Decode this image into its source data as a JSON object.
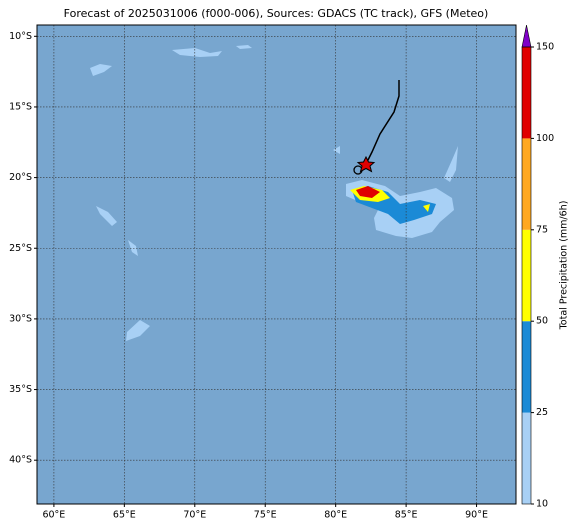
{
  "map": {
    "title": "Forecast of 2025031006 (f000-006), Sources: GDACS (TC track), GFS (Meteo)",
    "xlim": [
      58.8,
      92.8
    ],
    "ylim": [
      -43.1,
      -9.2
    ],
    "xticks": [
      {
        "value": 60,
        "label": "60°E"
      },
      {
        "value": 65,
        "label": "65°E"
      },
      {
        "value": 70,
        "label": "70°E"
      },
      {
        "value": 75,
        "label": "75°E"
      },
      {
        "value": 80,
        "label": "80°E"
      },
      {
        "value": 85,
        "label": "85°E"
      },
      {
        "value": 90,
        "label": "90°E"
      }
    ],
    "yticks": [
      {
        "value": -10,
        "label": "10°S"
      },
      {
        "value": -15,
        "label": "15°S"
      },
      {
        "value": -20,
        "label": "20°S"
      },
      {
        "value": -25,
        "label": "25°S"
      },
      {
        "value": -30,
        "label": "30°S"
      },
      {
        "value": -35,
        "label": "35°S"
      },
      {
        "value": -40,
        "label": "40°S"
      }
    ],
    "grid": true,
    "colorbar": {
      "label": "Total Precipitation (mm/6h)",
      "ticks": [
        10,
        25,
        50,
        75,
        100,
        150
      ],
      "colors": [
        "#a8d0f5",
        "#1b8ad6",
        "#ffff00",
        "#ffa820",
        "#e00000"
      ],
      "extend_color": "#8000c8"
    }
  }
}
